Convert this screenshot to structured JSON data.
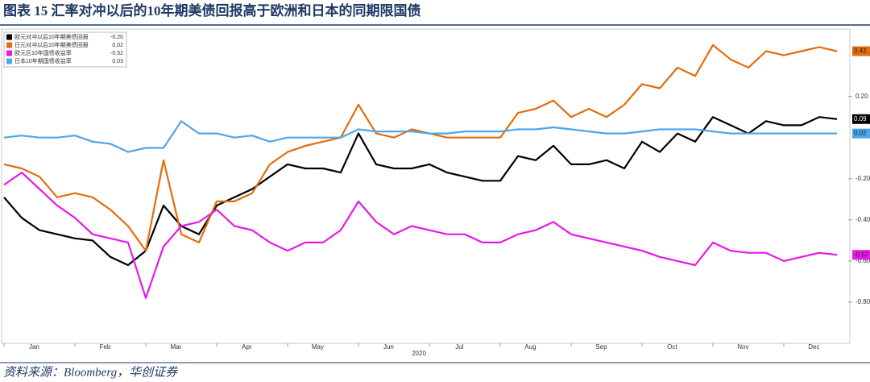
{
  "chart_data": {
    "type": "line",
    "title": "图表 15   汇率对冲以后的10年期美债回报高于欧洲和日本的同期限国债",
    "source": "资料来源：Bloomberg，华创证券",
    "x_label": "2020",
    "categories": [
      null,
      "Jan",
      null,
      null,
      null,
      "Feb",
      null,
      null,
      null,
      "Mar",
      null,
      null,
      null,
      "Apr",
      null,
      null,
      null,
      "May",
      null,
      null,
      null,
      "Jun",
      null,
      null,
      null,
      "Jul",
      null,
      null,
      null,
      "Aug",
      null,
      null,
      null,
      "Sep",
      null,
      null,
      null,
      "Oct",
      null,
      null,
      null,
      "Nov",
      null,
      null,
      null,
      "Dec",
      null,
      null
    ],
    "ylim": [
      -1.0,
      0.52
    ],
    "yticks": [
      {
        "value": 0.2,
        "label": "0.20"
      },
      {
        "value": -0.2,
        "label": "-0.20"
      },
      {
        "value": -0.4,
        "label": "-0.40"
      },
      {
        "value": -0.6,
        "label": "-0.60"
      },
      {
        "value": -0.8,
        "label": "-0.80"
      }
    ],
    "series": [
      {
        "name": "欧元对冲以后10年期美债回报",
        "legend_value": "-0.20",
        "color": "#000000",
        "values": [
          -0.29,
          -0.39,
          -0.45,
          -0.47,
          -0.49,
          -0.5,
          -0.58,
          -0.62,
          -0.55,
          -0.33,
          -0.43,
          -0.47,
          -0.33,
          -0.29,
          -0.25,
          -0.19,
          -0.13,
          -0.15,
          -0.15,
          -0.17,
          0.02,
          -0.13,
          -0.15,
          -0.15,
          -0.13,
          -0.17,
          -0.19,
          -0.21,
          -0.21,
          -0.09,
          -0.11,
          -0.04,
          -0.13,
          -0.13,
          -0.11,
          -0.15,
          -0.02,
          -0.07,
          0.02,
          -0.02,
          0.1,
          0.06,
          0.02,
          0.08,
          0.06,
          0.06,
          0.1,
          0.09
        ]
      },
      {
        "name": "日元对冲以后10年期美债回报",
        "legend_value": "0.02",
        "color": "#e46c0a",
        "values": [
          -0.13,
          -0.15,
          -0.19,
          -0.29,
          -0.27,
          -0.29,
          -0.35,
          -0.43,
          -0.55,
          -0.11,
          -0.47,
          -0.51,
          -0.31,
          -0.31,
          -0.27,
          -0.13,
          -0.07,
          -0.04,
          -0.02,
          0.0,
          0.16,
          0.02,
          0.0,
          0.04,
          0.02,
          0.0,
          0.0,
          0.0,
          0.0,
          0.12,
          0.14,
          0.18,
          0.1,
          0.14,
          0.1,
          0.16,
          0.26,
          0.24,
          0.34,
          0.3,
          0.45,
          0.38,
          0.34,
          0.42,
          0.4,
          0.42,
          0.44,
          0.42
        ]
      },
      {
        "name": "欧元区10年国债收益率",
        "legend_value": "-0.52",
        "color": "#e619e6",
        "values": [
          -0.23,
          -0.17,
          -0.25,
          -0.33,
          -0.39,
          -0.47,
          -0.49,
          -0.51,
          -0.78,
          -0.53,
          -0.43,
          -0.41,
          -0.35,
          -0.43,
          -0.45,
          -0.51,
          -0.55,
          -0.51,
          -0.51,
          -0.45,
          -0.31,
          -0.41,
          -0.47,
          -0.43,
          -0.45,
          -0.47,
          -0.47,
          -0.51,
          -0.51,
          -0.47,
          -0.45,
          -0.41,
          -0.47,
          -0.49,
          -0.51,
          -0.53,
          -0.55,
          -0.58,
          -0.6,
          -0.62,
          -0.51,
          -0.55,
          -0.56,
          -0.56,
          -0.6,
          -0.58,
          -0.56,
          -0.57
        ]
      },
      {
        "name": "日本10年期国债收益率",
        "legend_value": "0.03",
        "color": "#4da6e8",
        "values": [
          0.0,
          0.01,
          0.0,
          0.0,
          0.01,
          -0.02,
          -0.03,
          -0.07,
          -0.05,
          -0.05,
          0.08,
          0.02,
          0.02,
          0.0,
          0.01,
          -0.02,
          0.0,
          0.0,
          0.0,
          0.0,
          0.04,
          0.03,
          0.03,
          0.03,
          0.02,
          0.02,
          0.03,
          0.03,
          0.03,
          0.04,
          0.04,
          0.05,
          0.04,
          0.03,
          0.02,
          0.02,
          0.03,
          0.04,
          0.04,
          0.04,
          0.03,
          0.02,
          0.02,
          0.02,
          0.02,
          0.02,
          0.02,
          0.02
        ]
      }
    ]
  }
}
